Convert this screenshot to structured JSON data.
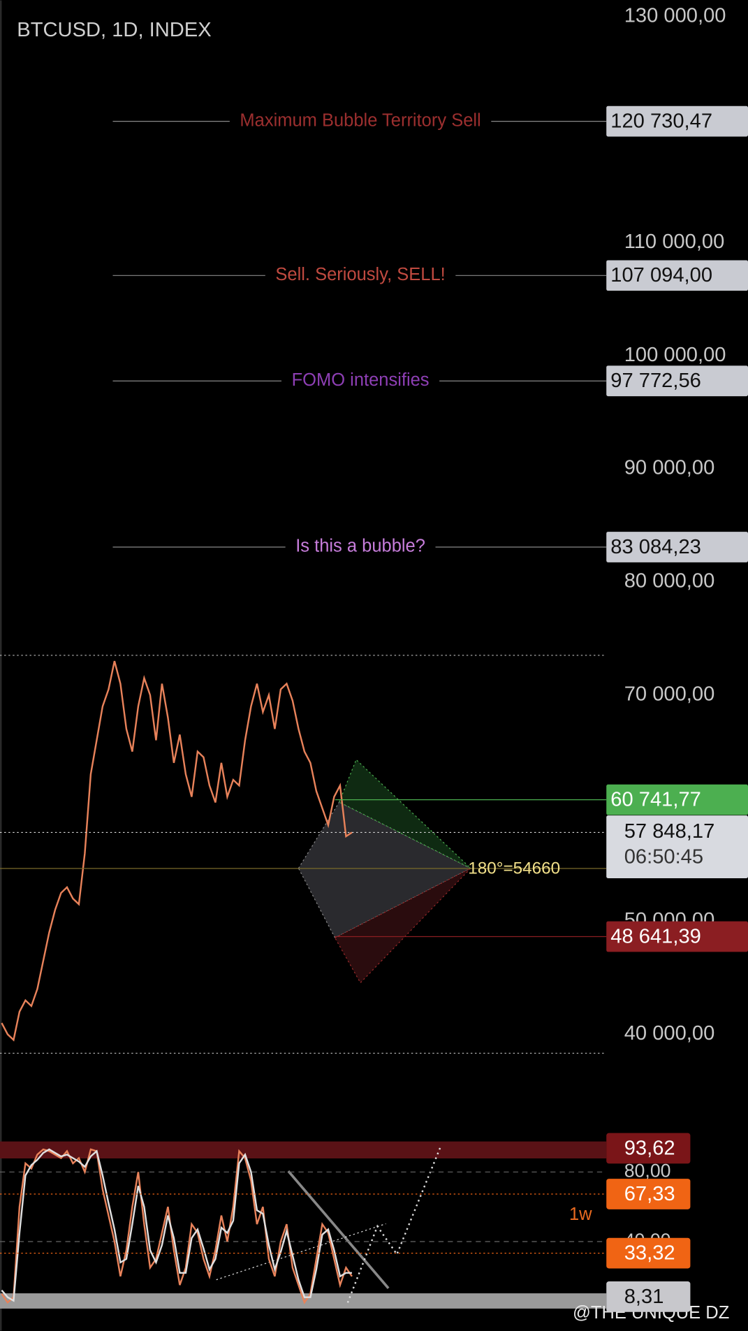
{
  "chart_data": [
    {
      "type": "line",
      "title": "BTCUSD, 1D, INDEX",
      "ylim": [
        34650,
        131425
      ],
      "yticks": [
        {
          "value": 130000,
          "label": "130 000,00"
        },
        {
          "value": 110000,
          "label": "110 000,00"
        },
        {
          "value": 100000,
          "label": "100 000,00"
        },
        {
          "value": 90000,
          "label": "90 000,00"
        },
        {
          "value": 80000,
          "label": "80 000,00"
        },
        {
          "value": 70000,
          "label": "70 000,00"
        },
        {
          "value": 50000,
          "label": "50 000,00"
        },
        {
          "value": 40000,
          "label": "40 000,00"
        }
      ],
      "series": [
        {
          "color": "#e8825a",
          "values": [
            41000,
            40000,
            39500,
            42000,
            43000,
            42500,
            44000,
            46500,
            49000,
            51000,
            52500,
            53000,
            52000,
            51500,
            56000,
            63000,
            66000,
            69000,
            70500,
            73000,
            71000,
            67000,
            65000,
            69000,
            71500,
            70000,
            66000,
            71000,
            68000,
            64000,
            66500,
            63000,
            61000,
            65000,
            64500,
            62000,
            60500,
            64000,
            61000,
            62500,
            62000,
            66000,
            69000,
            71000,
            68500,
            70000,
            67000,
            70500,
            71000,
            69500,
            67000,
            65000,
            64000,
            61500,
            60000,
            58500,
            61000,
            62000,
            57500,
            57848.17
          ]
        }
      ],
      "levels": [
        {
          "label": "Maximum Bubble Territory Sell",
          "value": 120730.47,
          "value_label": "120 730,47",
          "color": "#9c2f2f"
        },
        {
          "label": "Sell. Seriously, SELL!",
          "value": 107094.0,
          "value_label": "107 094,00",
          "color": "#c04a40"
        },
        {
          "label": "FOMO intensifies",
          "value": 97772.56,
          "value_label": "97 772,56",
          "color": "#8e3fb5"
        },
        {
          "label": "Is this a bubble?",
          "value": 83084.23,
          "value_label": "83 084,23",
          "color": "#c77ddb"
        }
      ],
      "markers": [
        {
          "value": 60741.77,
          "value_label": "60 741,77",
          "color": "#4caf50"
        },
        {
          "value": 57848.17,
          "value_label": "57 848,17",
          "color": "#d8dae0"
        },
        {
          "value": 48641.39,
          "value_label": "48 641,39",
          "color": "#8b1e22"
        }
      ],
      "countdown": "06:50:45",
      "annotation": {
        "label": "180°=54660",
        "value": 54660,
        "color": "#f2e08a"
      }
    },
    {
      "type": "line",
      "label": "1w",
      "ylim": [
        0,
        100
      ],
      "yticks": [
        {
          "value": 80,
          "label": "80,00"
        },
        {
          "value": 40,
          "label": "40,00"
        }
      ],
      "series": [
        {
          "color": "#e8825a",
          "values": [
            10,
            5,
            8,
            60,
            85,
            82,
            90,
            93,
            92,
            90,
            88,
            92,
            85,
            88,
            80,
            93,
            92,
            70,
            55,
            40,
            20,
            35,
            60,
            80,
            50,
            25,
            30,
            45,
            60,
            35,
            15,
            25,
            50,
            45,
            30,
            20,
            35,
            55,
            40,
            60,
            92,
            88,
            75,
            50,
            60,
            30,
            20,
            40,
            50,
            25,
            15,
            5,
            10,
            30,
            50,
            45,
            30,
            15,
            25,
            20
          ]
        },
        {
          "color": "#e0e0e0",
          "values": [
            12,
            8,
            6,
            45,
            78,
            84,
            87,
            91,
            93,
            91,
            89,
            90,
            88,
            86,
            83,
            89,
            92,
            78,
            62,
            47,
            28,
            30,
            50,
            72,
            60,
            35,
            28,
            38,
            55,
            42,
            22,
            22,
            42,
            47,
            36,
            24,
            30,
            48,
            45,
            52,
            85,
            90,
            80,
            58,
            56,
            38,
            24,
            34,
            46,
            32,
            18,
            8,
            8,
            24,
            44,
            47,
            35,
            20,
            22,
            22
          ]
        }
      ],
      "markers": [
        {
          "value": 93.62,
          "value_label": "93,62",
          "color": "#7a1518"
        },
        {
          "value": 67.33,
          "value_label": "67,33",
          "color": "#f06414"
        },
        {
          "value": 33.32,
          "value_label": "33,32",
          "color": "#f06414"
        },
        {
          "value": 8.31,
          "value_label": "8,31",
          "color": "#c8c8cc"
        }
      ]
    }
  ],
  "watermark": "@THE UNIQUE DZ"
}
